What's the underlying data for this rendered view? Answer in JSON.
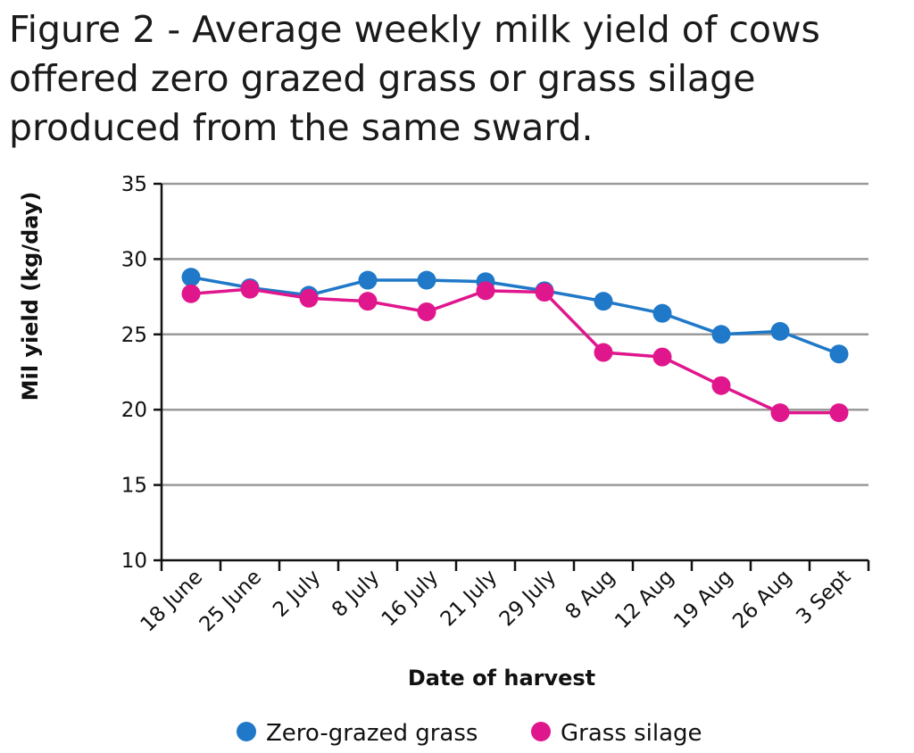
{
  "chart_data": {
    "type": "line",
    "title_lines": [
      "Figure 2 - Average weekly milk yield of cows",
      "offered zero grazed grass or grass silage",
      "produced from the same sward."
    ],
    "xlabel": "Date of harvest",
    "ylabel": "Mil yield (kg/day)",
    "categories": [
      "18 June",
      "25 June",
      "2 July",
      "8 July",
      "16 July",
      "21 July",
      "29 July",
      "8 Aug",
      "12 Aug",
      "19 Aug",
      "26 Aug",
      "3 Sept"
    ],
    "ylim": [
      10,
      35
    ],
    "yticks": [
      10,
      15,
      20,
      25,
      30,
      35
    ],
    "grid": "horizontal",
    "legend_position": "bottom",
    "series": [
      {
        "name": "Zero-grazed grass",
        "color": "#1f78c8",
        "values": [
          28.8,
          28.1,
          27.6,
          28.6,
          28.6,
          28.5,
          27.9,
          27.2,
          26.4,
          25.0,
          25.2,
          23.7
        ]
      },
      {
        "name": "Grass silage",
        "color": "#e0168c",
        "values": [
          27.7,
          28.0,
          27.4,
          27.2,
          26.5,
          27.9,
          27.8,
          23.8,
          23.5,
          21.6,
          19.8,
          19.8
        ]
      }
    ]
  }
}
